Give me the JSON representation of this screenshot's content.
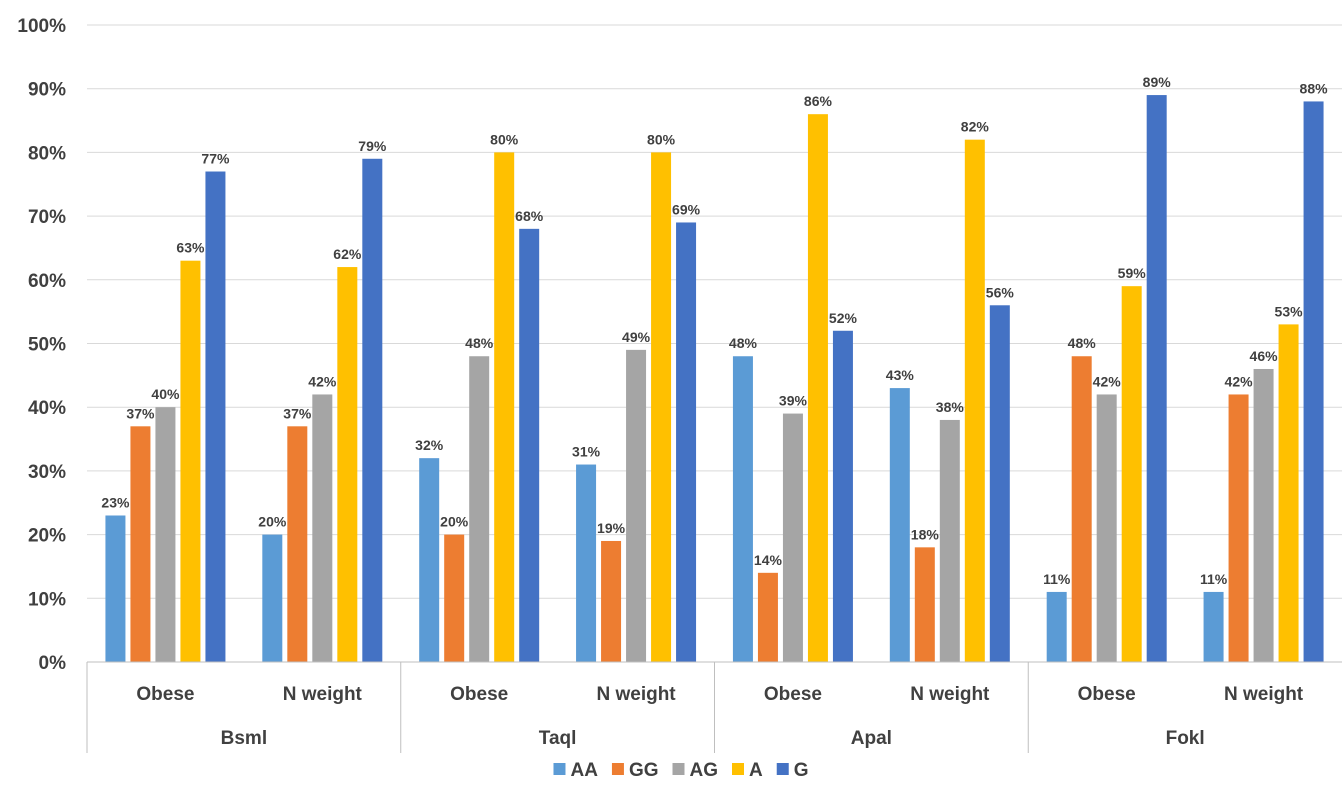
{
  "chart_data": {
    "type": "bar",
    "ylim": [
      0,
      100
    ],
    "y_ticks": [
      "0%",
      "10%",
      "20%",
      "30%",
      "40%",
      "50%",
      "60%",
      "70%",
      "80%",
      "90%",
      "100%"
    ],
    "grid": true,
    "legend_position": "bottom",
    "groups": [
      {
        "name": "Bsml",
        "categories": [
          "Obese",
          "N weight"
        ]
      },
      {
        "name": "Taql",
        "categories": [
          "Obese",
          "N weight"
        ]
      },
      {
        "name": "Apal",
        "categories": [
          "Obese",
          "N weight"
        ]
      },
      {
        "name": "Fokl",
        "categories": [
          "Obese",
          "N weight"
        ]
      }
    ],
    "series": [
      {
        "name": "AA",
        "color": "#5B9BD5",
        "values": [
          23,
          20,
          32,
          31,
          48,
          43,
          11,
          11
        ]
      },
      {
        "name": "GG",
        "color": "#ED7D31",
        "values": [
          37,
          37,
          20,
          19,
          14,
          18,
          48,
          42
        ]
      },
      {
        "name": "AG",
        "color": "#A5A5A5",
        "values": [
          40,
          42,
          48,
          49,
          39,
          38,
          42,
          46
        ]
      },
      {
        "name": "A",
        "color": "#FFC000",
        "values": [
          63,
          62,
          80,
          80,
          86,
          82,
          59,
          53
        ]
      },
      {
        "name": "G",
        "color": "#4472C4",
        "values": [
          77,
          79,
          68,
          69,
          52,
          56,
          89,
          88
        ]
      }
    ],
    "value_suffix": "%"
  }
}
